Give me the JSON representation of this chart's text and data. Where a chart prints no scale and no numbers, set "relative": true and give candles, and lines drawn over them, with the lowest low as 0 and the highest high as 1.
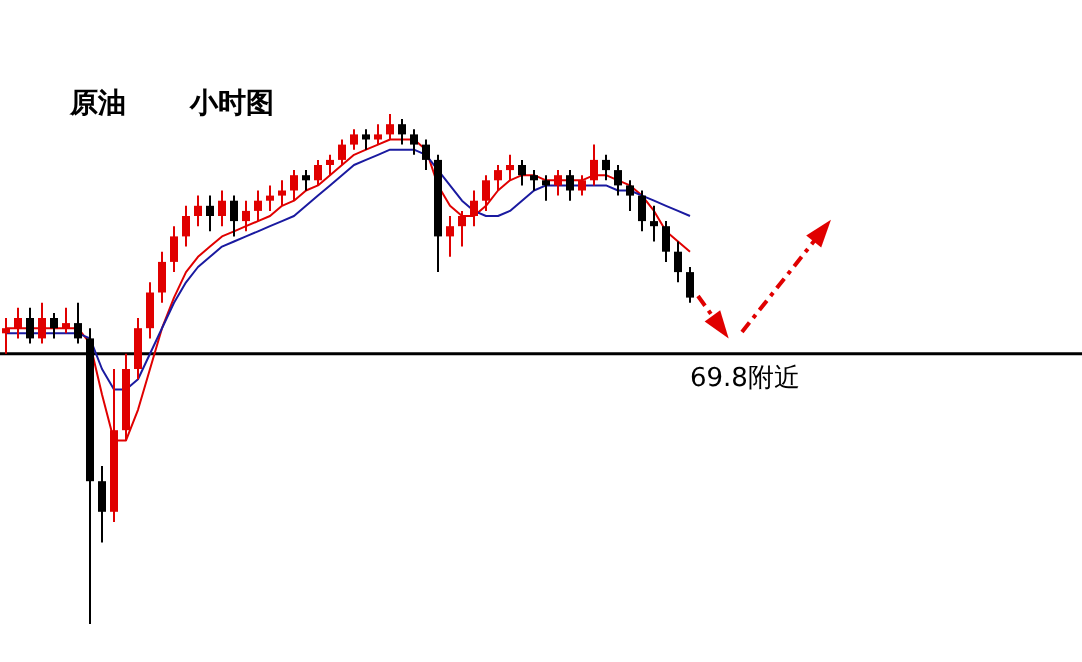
{
  "chart_data": {
    "type": "candlestick",
    "title": "原油",
    "subtitle": "小时图",
    "relative": true,
    "categories": [
      null,
      null,
      null,
      null,
      null,
      null,
      null,
      null,
      null,
      null,
      null,
      null,
      null,
      null,
      null,
      null,
      null,
      null,
      null,
      null,
      null,
      null,
      null,
      null,
      null,
      null,
      null,
      null,
      null,
      null,
      null,
      null,
      null,
      null,
      null,
      null,
      null,
      null,
      null,
      null,
      null,
      null,
      null,
      null,
      null,
      null,
      null,
      null,
      null,
      null,
      null,
      null,
      null,
      null,
      null,
      null,
      null,
      null
    ],
    "ohlc": [
      [
        0.57,
        0.6,
        0.53,
        0.58
      ],
      [
        0.58,
        0.62,
        0.56,
        0.6
      ],
      [
        0.6,
        0.62,
        0.55,
        0.56
      ],
      [
        0.56,
        0.63,
        0.55,
        0.6
      ],
      [
        0.6,
        0.61,
        0.56,
        0.58
      ],
      [
        0.58,
        0.62,
        0.57,
        0.59
      ],
      [
        0.59,
        0.63,
        0.55,
        0.56
      ],
      [
        0.56,
        0.58,
        0,
        0.28
      ],
      [
        0.28,
        0.31,
        0.16,
        0.22
      ],
      [
        0.22,
        0.5,
        0.2,
        0.38
      ],
      [
        0.38,
        0.53,
        0.36,
        0.5
      ],
      [
        0.5,
        0.6,
        0.48,
        0.58
      ],
      [
        0.58,
        0.67,
        0.56,
        0.65
      ],
      [
        0.65,
        0.73,
        0.63,
        0.71
      ],
      [
        0.71,
        0.78,
        0.69,
        0.76
      ],
      [
        0.76,
        0.82,
        0.74,
        0.8
      ],
      [
        0.8,
        0.84,
        0.78,
        0.82
      ],
      [
        0.82,
        0.84,
        0.77,
        0.8
      ],
      [
        0.8,
        0.85,
        0.78,
        0.83
      ],
      [
        0.83,
        0.84,
        0.76,
        0.79
      ],
      [
        0.79,
        0.83,
        0.77,
        0.81
      ],
      [
        0.81,
        0.85,
        0.79,
        0.83
      ],
      [
        0.83,
        0.86,
        0.81,
        0.84
      ],
      [
        0.84,
        0.87,
        0.82,
        0.85
      ],
      [
        0.85,
        0.89,
        0.83,
        0.88
      ],
      [
        0.88,
        0.89,
        0.85,
        0.87
      ],
      [
        0.87,
        0.91,
        0.86,
        0.9
      ],
      [
        0.9,
        0.92,
        0.88,
        0.91
      ],
      [
        0.91,
        0.95,
        0.9,
        0.94
      ],
      [
        0.94,
        0.97,
        0.93,
        0.96
      ],
      [
        0.96,
        0.97,
        0.93,
        0.95
      ],
      [
        0.95,
        0.98,
        0.94,
        0.96
      ],
      [
        0.96,
        1,
        0.95,
        0.98
      ],
      [
        0.98,
        0.99,
        0.94,
        0.96
      ],
      [
        0.96,
        0.97,
        0.92,
        0.94
      ],
      [
        0.94,
        0.95,
        0.89,
        0.91
      ],
      [
        0.91,
        0.92,
        0.69,
        0.76
      ],
      [
        0.76,
        0.8,
        0.72,
        0.78
      ],
      [
        0.78,
        0.81,
        0.74,
        0.8
      ],
      [
        0.8,
        0.85,
        0.78,
        0.83
      ],
      [
        0.83,
        0.88,
        0.81,
        0.87
      ],
      [
        0.87,
        0.9,
        0.85,
        0.89
      ],
      [
        0.89,
        0.92,
        0.87,
        0.9
      ],
      [
        0.9,
        0.91,
        0.86,
        0.88
      ],
      [
        0.88,
        0.89,
        0.85,
        0.87
      ],
      [
        0.87,
        0.88,
        0.83,
        0.86
      ],
      [
        0.86,
        0.89,
        0.84,
        0.88
      ],
      [
        0.88,
        0.89,
        0.83,
        0.85
      ],
      [
        0.85,
        0.88,
        0.84,
        0.87
      ],
      [
        0.87,
        0.94,
        0.86,
        0.91
      ],
      [
        0.91,
        0.92,
        0.87,
        0.89
      ],
      [
        0.89,
        0.9,
        0.84,
        0.86
      ],
      [
        0.86,
        0.87,
        0.81,
        0.84
      ],
      [
        0.84,
        0.85,
        0.77,
        0.79
      ],
      [
        0.79,
        0.82,
        0.75,
        0.78
      ],
      [
        0.78,
        0.79,
        0.71,
        0.73
      ],
      [
        0.73,
        0.75,
        0.67,
        0.69
      ],
      [
        0.69,
        0.7,
        0.63,
        0.64
      ]
    ],
    "colors": [
      "#e00000",
      "#e00000",
      "#000000",
      "#e00000",
      "#000000",
      "#e00000",
      "#000000",
      "#000000",
      "#000000",
      "#e00000",
      "#e00000",
      "#e00000",
      "#e00000",
      "#e00000",
      "#e00000",
      "#e00000",
      "#e00000",
      "#000000",
      "#e00000",
      "#000000",
      "#e00000",
      "#e00000",
      "#e00000",
      "#e00000",
      "#e00000",
      "#000000",
      "#e00000",
      "#e00000",
      "#e00000",
      "#e00000",
      "#000000",
      "#e00000",
      "#e00000",
      "#000000",
      "#000000",
      "#000000",
      "#000000",
      "#e00000",
      "#e00000",
      "#e00000",
      "#e00000",
      "#e00000",
      "#e00000",
      "#000000",
      "#000000",
      "#000000",
      "#e00000",
      "#000000",
      "#e00000",
      "#e00000",
      "#000000",
      "#000000",
      "#000000",
      "#000000",
      "#000000",
      "#000000",
      "#000000",
      "#000000"
    ],
    "series": [
      {
        "type": "line",
        "color": "#e00000",
        "values": [
          0.58,
          0.58,
          0.58,
          0.58,
          0.58,
          0.58,
          0.58,
          0.55,
          0.45,
          0.36,
          0.36,
          0.42,
          0.5,
          0.58,
          0.64,
          0.69,
          0.72,
          0.74,
          0.76,
          0.77,
          0.78,
          0.79,
          0.8,
          0.82,
          0.83,
          0.85,
          0.86,
          0.88,
          0.9,
          0.92,
          0.93,
          0.94,
          0.95,
          0.95,
          0.95,
          0.93,
          0.86,
          0.82,
          0.8,
          0.8,
          0.82,
          0.85,
          0.87,
          0.88,
          0.88,
          0.87,
          0.87,
          0.87,
          0.87,
          0.88,
          0.88,
          0.87,
          0.86,
          0.84,
          0.81,
          0.77,
          0.75,
          0.73
        ]
      },
      {
        "type": "line",
        "color": "#1a1aa0",
        "values": [
          0.57,
          0.57,
          0.57,
          0.57,
          0.57,
          0.57,
          0.57,
          0.56,
          0.5,
          0.46,
          0.46,
          0.48,
          0.53,
          0.58,
          0.63,
          0.67,
          0.7,
          0.72,
          0.74,
          0.75,
          0.76,
          0.77,
          0.78,
          0.79,
          0.8,
          0.82,
          0.84,
          0.86,
          0.88,
          0.9,
          0.91,
          0.92,
          0.93,
          0.93,
          0.93,
          0.92,
          0.89,
          0.86,
          0.83,
          0.81,
          0.8,
          0.8,
          0.81,
          0.83,
          0.85,
          0.86,
          0.86,
          0.86,
          0.86,
          0.86,
          0.86,
          0.85,
          0.85,
          0.84,
          0.83,
          0.82,
          0.81,
          0.8
        ]
      }
    ],
    "ref_lines": [
      {
        "axis": "y",
        "value": 0.53,
        "label": "69.8附近",
        "color": "#000000"
      }
    ]
  }
}
